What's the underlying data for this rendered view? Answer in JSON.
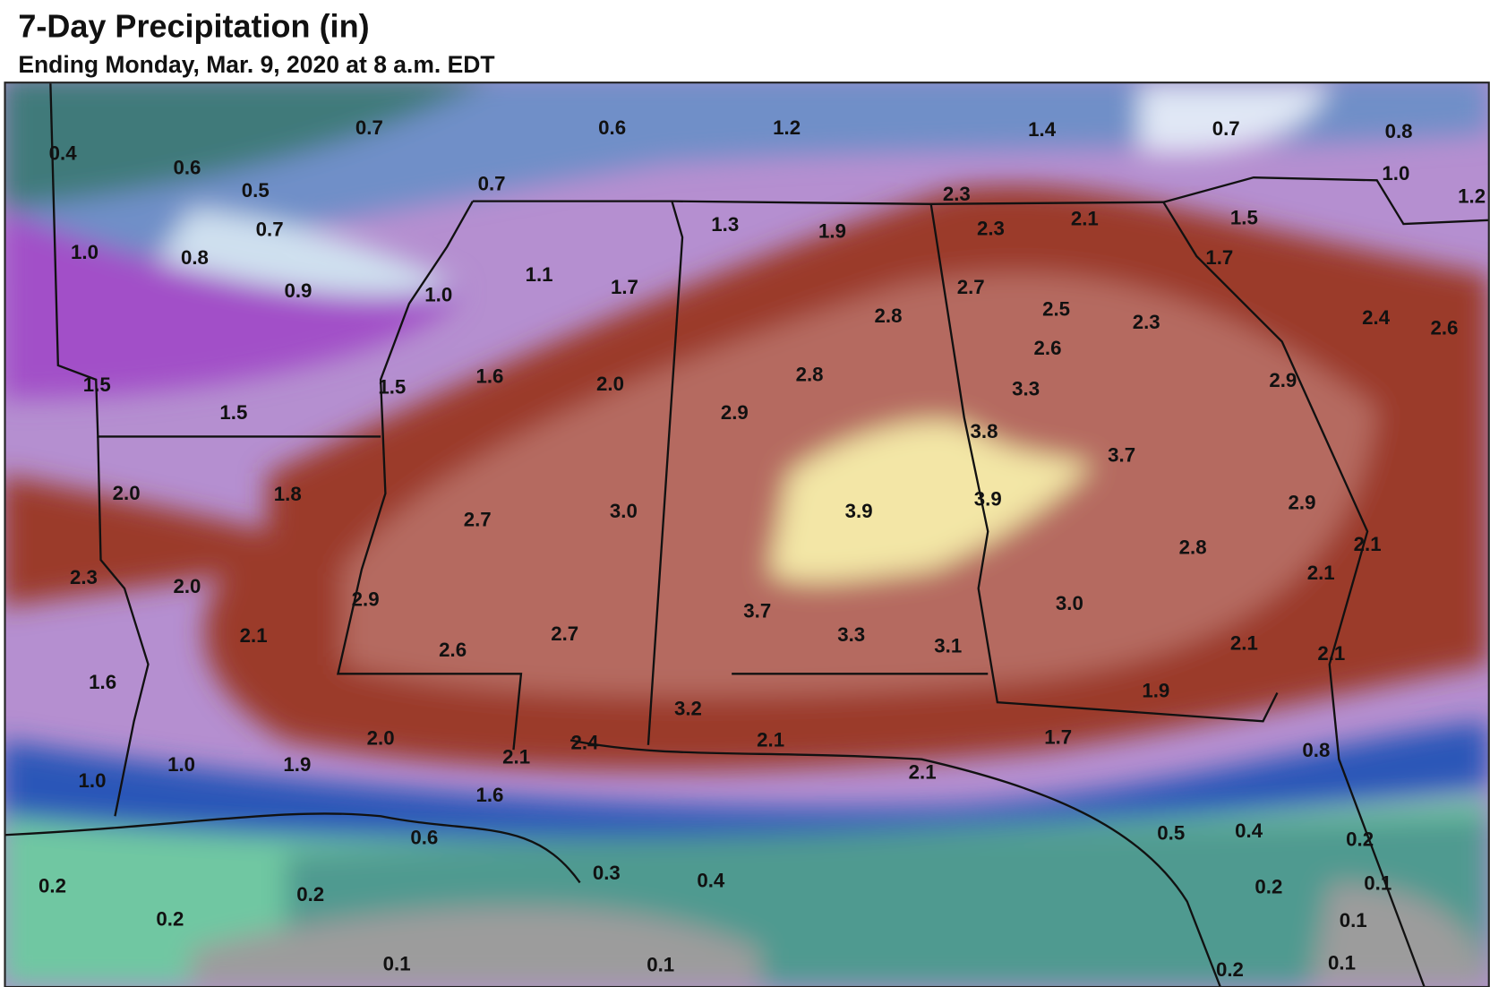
{
  "header": {
    "title": "7-Day Precipitation (in)",
    "subtitle": "Ending Monday, Mar. 9, 2020 at 8 a.m. EDT"
  },
  "map": {
    "labels": [
      "0.4",
      "0.6",
      "0.5",
      "0.7",
      "0.7",
      "1.0",
      "0.8",
      "0.9",
      "0.6",
      "0.7",
      "1.2",
      "1.4",
      "0.7",
      "0.8",
      "1.0",
      "1.2",
      "2.3",
      "2.1",
      "2.3",
      "1.3",
      "1.9",
      "1.5",
      "1.7",
      "1.0",
      "1.1",
      "1.7",
      "2.7",
      "2.8",
      "2.5",
      "2.3",
      "2.4",
      "2.6",
      "2.6",
      "1.5",
      "1.5",
      "1.5",
      "1.6",
      "2.0",
      "2.8",
      "3.3",
      "2.9",
      "2.9",
      "3.8",
      "3.7",
      "2.0",
      "1.8",
      "2.7",
      "3.0",
      "3.9",
      "3.9",
      "2.9",
      "2.8",
      "2.1",
      "2.1",
      "2.3",
      "2.0",
      "2.9",
      "2.1",
      "3.7",
      "3.3",
      "3.1",
      "3.0",
      "2.6",
      "2.7",
      "2.1",
      "2.1",
      "1.6",
      "1.9",
      "3.2",
      "2.0",
      "2.4",
      "2.1",
      "2.1",
      "1.7",
      "0.8",
      "2.1",
      "1.0",
      "1.9",
      "1.0",
      "1.6",
      "0.6",
      "0.5",
      "0.4",
      "0.2",
      "0.3",
      "0.4",
      "0.2",
      "0.2",
      "0.2",
      "0.1",
      "0.2",
      "0.1",
      "0.1",
      "0.1",
      "0.2",
      "0.1"
    ]
  }
}
